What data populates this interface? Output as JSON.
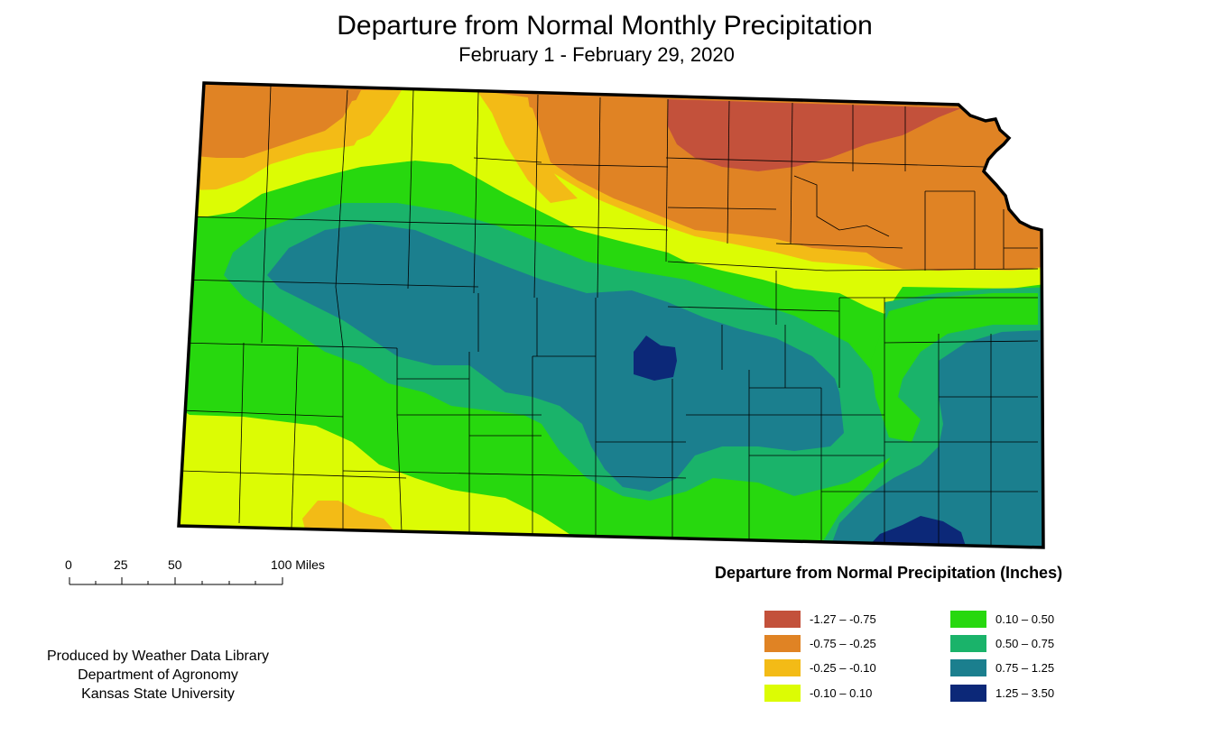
{
  "title": "Departure from Normal Monthly Precipitation",
  "subtitle": "February 1 - February 29, 2020",
  "scale_bar": {
    "labels": [
      "0",
      "25",
      "50",
      "100 Miles"
    ]
  },
  "credit": {
    "line1": "Produced by Weather Data Library",
    "line2": "Department of Agronomy",
    "line3": "Kansas State University"
  },
  "legend": {
    "title": "Departure from Normal Precipitation (Inches)",
    "items": [
      {
        "label": "-1.27 – -0.75",
        "color": "#c3513b"
      },
      {
        "label": "-0.75 – -0.25",
        "color": "#e08324"
      },
      {
        "label": "-0.25 – -0.10",
        "color": "#f3bb16"
      },
      {
        "label": "-0.10 – 0.10",
        "color": "#dcfc04"
      },
      {
        "label": "0.10 – 0.50",
        "color": "#27d80e"
      },
      {
        "label": "0.50 – 0.75",
        "color": "#1ab36a"
      },
      {
        "label": "0.75 – 1.25",
        "color": "#1b7f8e"
      },
      {
        "label": "1.25 – 3.50",
        "color": "#0c2878"
      }
    ]
  }
}
